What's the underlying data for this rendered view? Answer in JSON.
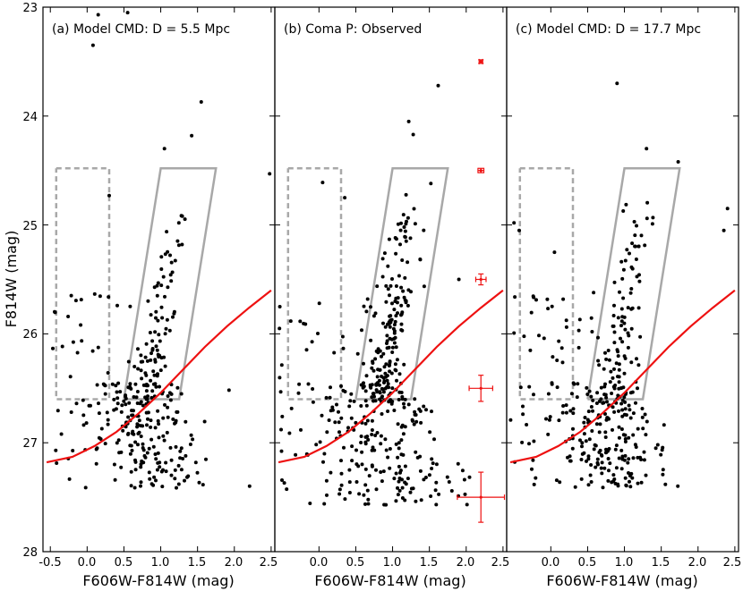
{
  "figure": {
    "ylabel": "F814W (mag)",
    "xlabel": "F606W-F814W (mag)"
  },
  "colors": {
    "points": "#000000",
    "completeness": "#ee1111",
    "box_rgb": "#a8a8a8",
    "box_blue": "#a8a8a8",
    "errors": "#ee1111"
  },
  "chart_data": [
    {
      "type": "scatter",
      "title": "(a) Model CMD: D = 5.5 Mpc",
      "xlabel": "F606W-F814W (mag)",
      "ylabel": "F814W (mag)",
      "xlim": [
        -0.6,
        2.55
      ],
      "ylim": [
        28,
        23
      ],
      "xticks": [
        "-0.5",
        "0.0",
        "0.5",
        "1.0",
        "1.5",
        "2.0",
        "2.5"
      ],
      "xtick_values": [
        -0.5,
        0.0,
        0.5,
        1.0,
        1.5,
        2.0,
        2.5
      ],
      "yticks": [
        "23",
        "24",
        "25",
        "26",
        "27",
        "28"
      ],
      "ytick_values": [
        23,
        24,
        25,
        26,
        27,
        28
      ],
      "points_seed": 11,
      "points_count": 330,
      "isolated_points": [
        [
          0.15,
          23.07
        ],
        [
          0.55,
          23.05
        ],
        [
          0.08,
          23.35
        ],
        [
          1.55,
          23.87
        ],
        [
          1.42,
          24.18
        ],
        [
          1.05,
          24.3
        ],
        [
          2.48,
          24.53
        ],
        [
          0.3,
          24.73
        ]
      ]
    },
    {
      "type": "scatter",
      "title": "(b) Coma P: Observed",
      "xlabel": "F606W-F814W (mag)",
      "xlim": [
        -0.6,
        2.55
      ],
      "ylim": [
        28,
        23
      ],
      "xticks": [
        "0.0",
        "0.5",
        "1.0",
        "1.5",
        "2.0",
        "2.5"
      ],
      "xtick_values": [
        0.0,
        0.5,
        1.0,
        1.5,
        2.0,
        2.5
      ],
      "points_seed": 23,
      "points_count": 420,
      "isolated_points": [
        [
          1.62,
          23.72
        ],
        [
          1.22,
          24.05
        ],
        [
          1.28,
          24.17
        ],
        [
          0.05,
          24.61
        ],
        [
          0.35,
          24.75
        ],
        [
          1.52,
          24.62
        ],
        [
          1.9,
          25.5
        ]
      ],
      "error_bars": [
        {
          "x": 2.2,
          "y": 23.5,
          "xerr": 0.02,
          "yerr": 0.01
        },
        {
          "x": 2.2,
          "y": 24.5,
          "xerr": 0.04,
          "yerr": 0.02
        },
        {
          "x": 2.2,
          "y": 25.5,
          "xerr": 0.07,
          "yerr": 0.05
        },
        {
          "x": 2.2,
          "y": 26.5,
          "xerr": 0.16,
          "yerr": 0.12
        },
        {
          "x": 2.2,
          "y": 27.5,
          "xerr": 0.32,
          "yerr": 0.23
        }
      ]
    },
    {
      "type": "scatter",
      "title": "(c) Model CMD: D = 17.7 Mpc",
      "xlabel": "F606W-F814W (mag)",
      "xlim": [
        -0.6,
        2.55
      ],
      "ylim": [
        28,
        23
      ],
      "xticks": [
        "0.0",
        "0.5",
        "1.0",
        "1.5",
        "2.0",
        "2.5"
      ],
      "xtick_values": [
        0.0,
        0.5,
        1.0,
        1.5,
        2.0,
        2.5
      ],
      "points_seed": 37,
      "points_count": 350,
      "isolated_points": [
        [
          0.9,
          23.7
        ],
        [
          1.3,
          24.3
        ],
        [
          1.73,
          24.42
        ],
        [
          2.4,
          24.85
        ],
        [
          2.35,
          25.05
        ],
        [
          -0.43,
          25.05
        ],
        [
          -0.5,
          24.98
        ],
        [
          0.05,
          25.25
        ]
      ]
    }
  ],
  "shared": {
    "completeness_curve": {
      "x": [
        -0.55,
        -0.2,
        0.1,
        0.4,
        0.7,
        1.0,
        1.3,
        1.6,
        1.9,
        2.2,
        2.5
      ],
      "y": [
        27.18,
        27.13,
        27.03,
        26.9,
        26.73,
        26.54,
        26.33,
        26.12,
        25.93,
        25.76,
        25.6
      ]
    },
    "rgb_box": {
      "x": [
        0.5,
        1.0,
        1.75,
        1.25,
        0.5
      ],
      "y": [
        26.6,
        24.48,
        24.48,
        26.6,
        26.6
      ]
    },
    "blue_box": {
      "x": [
        -0.42,
        0.3,
        0.3,
        -0.42,
        -0.42
      ],
      "y": [
        24.48,
        24.48,
        26.6,
        26.6,
        24.48
      ]
    }
  }
}
